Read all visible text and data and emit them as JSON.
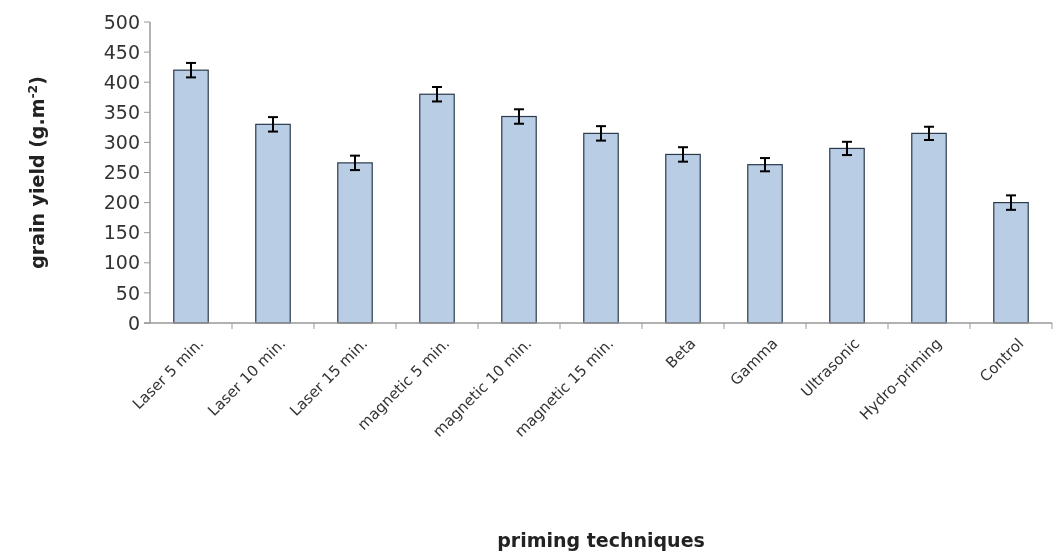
{
  "chart_data": {
    "type": "bar",
    "xlabel": "priming techniques",
    "ylabel": "grain yield (g.m$^{-2}$)",
    "categories": [
      "Laser 5 min.",
      "Laser 10 min.",
      "Laser 15 min.",
      "magnetic 5 min.",
      "magnetic 10 min.",
      "magnetic 15 min.",
      "Beta",
      "Gamma",
      "Ultrasonic",
      "Hydro-priming",
      "Control"
    ],
    "values": [
      420,
      330,
      266,
      380,
      343,
      315,
      280,
      263,
      290,
      315,
      200
    ],
    "errors": [
      12,
      12,
      12,
      12,
      12,
      12,
      12,
      11,
      11,
      11,
      12
    ],
    "color": "#b9cde5",
    "ylim": [
      0,
      500
    ],
    "yticks": [
      0,
      50,
      100,
      150,
      200,
      250,
      300,
      350,
      400,
      450,
      500
    ],
    "grid": false
  }
}
